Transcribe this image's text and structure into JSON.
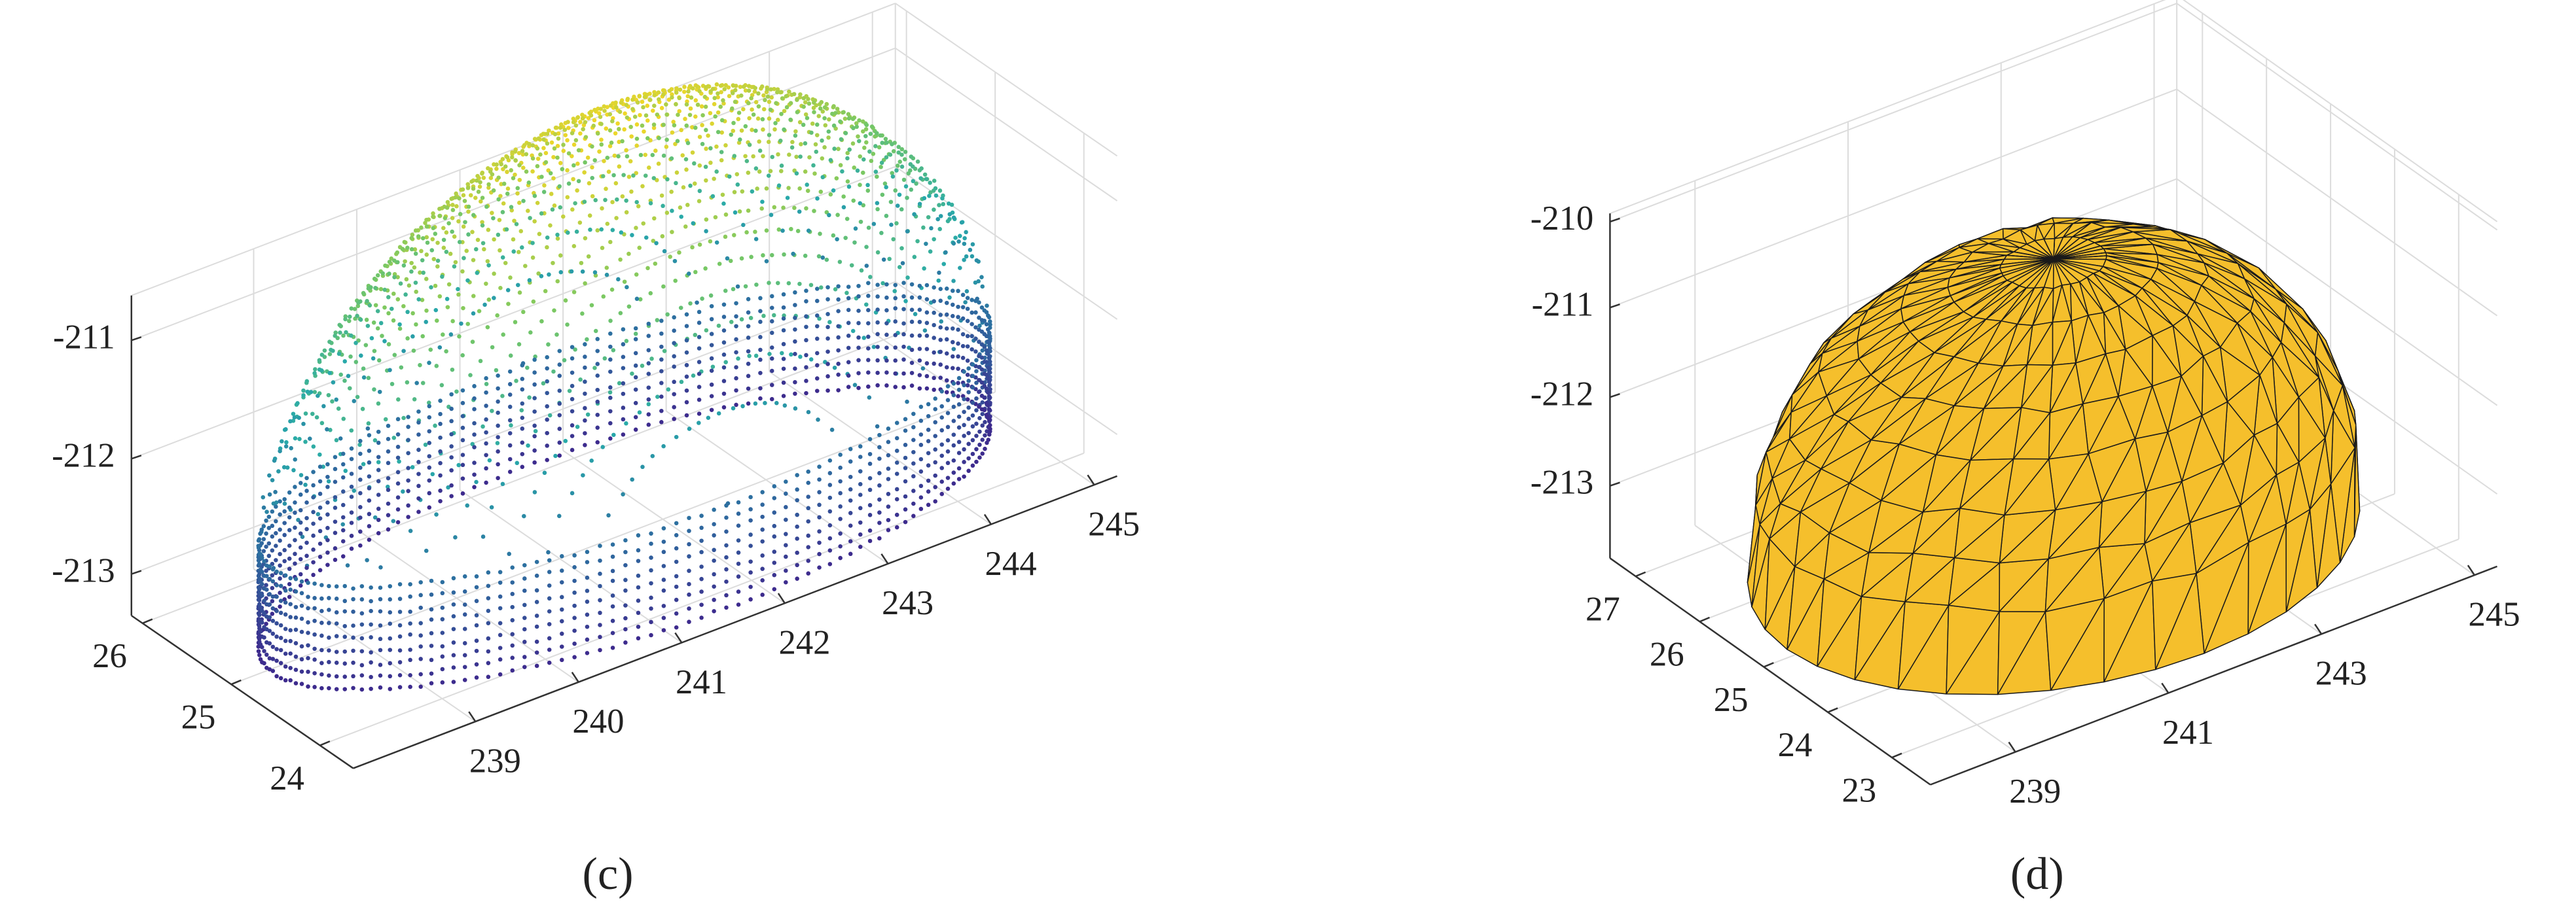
{
  "panels": [
    {
      "label": "(c)",
      "xticks": [
        239,
        240,
        241,
        242,
        243,
        244,
        245
      ],
      "yticks": [
        24,
        25,
        26
      ],
      "zticks": [
        -211,
        -212,
        -213
      ]
    },
    {
      "label": "(d)",
      "xticks": [
        239,
        241,
        243,
        245
      ],
      "yticks": [
        23,
        24,
        25,
        26,
        27
      ],
      "zticks": [
        -210,
        -211,
        -212,
        -213
      ]
    }
  ]
}
